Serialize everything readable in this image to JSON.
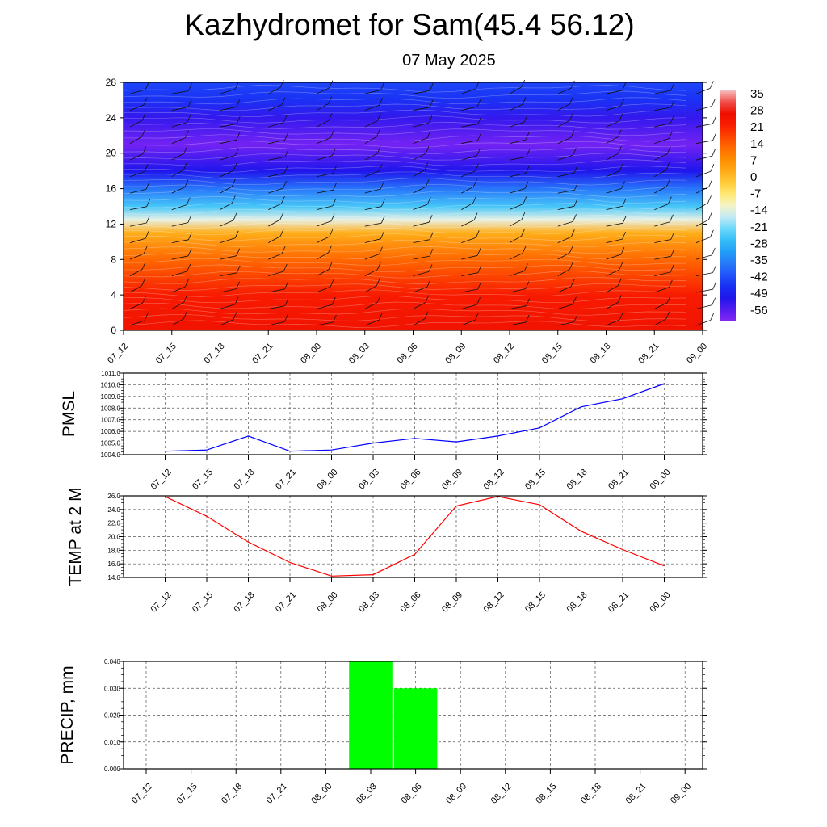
{
  "title": "Kazhydromet for Sam(45.4 56.12)",
  "subtitle": "07 May 2025",
  "x_ticks": [
    "07_12",
    "07_15",
    "07_18",
    "07_21",
    "08_00",
    "08_03",
    "08_06",
    "08_09",
    "08_12",
    "08_15",
    "08_18",
    "08_21",
    "09_00"
  ],
  "colors": {
    "pmsl": "#0000ff",
    "temp": "#ff0000",
    "precip": "#00ff00",
    "grid": "#000000"
  },
  "chart_data": [
    {
      "type": "heatmap",
      "title": "",
      "xlabel": "",
      "ylabel": "",
      "y_ticks": [
        "0",
        "4",
        "8",
        "12",
        "16",
        "20",
        "24",
        "28"
      ],
      "ylim": [
        0,
        28
      ],
      "colorbar_labels": [
        "35",
        "28",
        "21",
        "14",
        "7",
        "0",
        "-7",
        "-14",
        "-21",
        "-28",
        "-35",
        "-42",
        "-49",
        "-56"
      ],
      "colorbar_range": [
        -60,
        38
      ],
      "value_profile": [
        {
          "y": 0,
          "value": 27
        },
        {
          "y": 4,
          "value": 24
        },
        {
          "y": 8,
          "value": 14
        },
        {
          "y": 11,
          "value": 3
        },
        {
          "y": 12.5,
          "value": -13
        },
        {
          "y": 14,
          "value": -24
        },
        {
          "y": 16,
          "value": -36
        },
        {
          "y": 18,
          "value": -50
        },
        {
          "y": 21,
          "value": -58
        },
        {
          "y": 24,
          "value": -52
        },
        {
          "y": 26,
          "value": -45
        },
        {
          "y": 28,
          "value": -42
        }
      ],
      "overlay": "wind barbs"
    },
    {
      "type": "line",
      "ylabel": "PMSL",
      "y_ticks": [
        "1004.0",
        "1005.0",
        "1006.0",
        "1007.0",
        "1008.0",
        "1009.0",
        "1010.0",
        "1011.0"
      ],
      "ylim": [
        1004,
        1011
      ],
      "grid": true,
      "series": [
        {
          "values": [
            1004.3,
            1004.4,
            1005.6,
            1004.3,
            1004.4,
            1005.0,
            1005.4,
            1005.1,
            1005.6,
            1006.3,
            1008.1,
            1008.8,
            1010.1
          ]
        }
      ]
    },
    {
      "type": "line",
      "ylabel": "TEMP at 2 M",
      "y_ticks": [
        "14.0",
        "16.0",
        "18.0",
        "20.0",
        "22.0",
        "24.0",
        "26.0"
      ],
      "ylim": [
        14,
        26
      ],
      "grid": true,
      "series": [
        {
          "values": [
            25.9,
            23.0,
            19.2,
            16.2,
            14.2,
            14.4,
            17.4,
            24.5,
            25.9,
            24.7,
            20.8,
            18.1,
            15.7
          ]
        }
      ]
    },
    {
      "type": "bar",
      "ylabel": "PRECIP, mm",
      "y_ticks": [
        "0.000",
        "0.010",
        "0.020",
        "0.030",
        "0.040"
      ],
      "ylim": [
        0,
        0.04
      ],
      "grid": true,
      "values": [
        0,
        0,
        0,
        0,
        0,
        0.04,
        0.03,
        0,
        0,
        0,
        0,
        0,
        0
      ]
    }
  ]
}
